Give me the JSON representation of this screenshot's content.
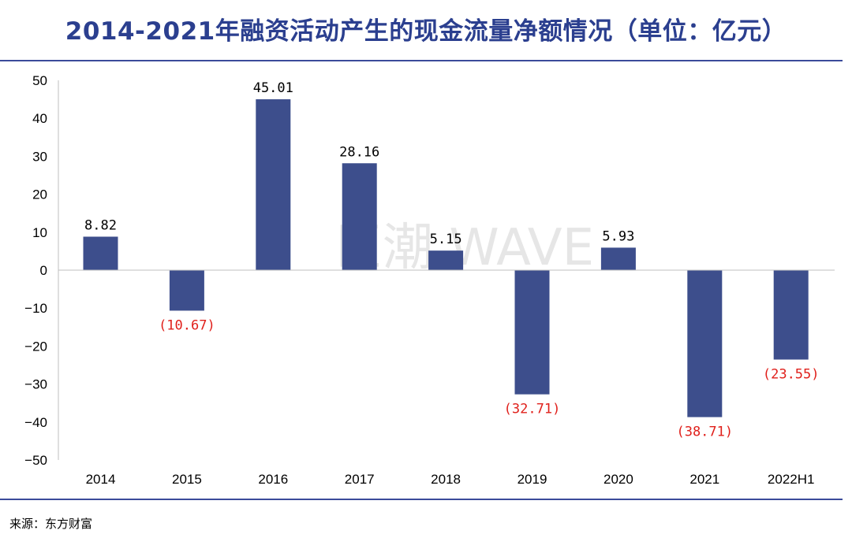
{
  "chart_data": {
    "type": "bar",
    "title": "2014-2021年融资活动产生的现金流量净额情况（单位：亿元）",
    "categories": [
      "2014",
      "2015",
      "2016",
      "2017",
      "2018",
      "2019",
      "2020",
      "2021",
      "2022H1"
    ],
    "values": [
      8.82,
      -10.67,
      45.01,
      28.16,
      5.15,
      -32.71,
      5.93,
      -38.71,
      -23.55
    ],
    "value_labels": [
      "8.82",
      "(10.67)",
      "45.01",
      "28.16",
      "5.15",
      "(32.71)",
      "5.93",
      "(38.71)",
      "(23.55)"
    ],
    "ylim": [
      -50,
      50
    ],
    "yticks": [
      50,
      40,
      30,
      20,
      10,
      0,
      -10,
      -20,
      -30,
      -40,
      -50
    ],
    "ytick_labels": [
      "50",
      "40",
      "30",
      "20",
      "10",
      "0",
      "−10",
      "−20",
      "−30",
      "−40",
      "−50"
    ],
    "xlabel": "",
    "ylabel": "",
    "grid": false,
    "legend": "none"
  },
  "watermark": "巨潮 WAVE",
  "source": "来源：东方财富",
  "colors": {
    "bar": "#3d4e8c",
    "title": "#2b3f8f",
    "negative_label": "#e0201b",
    "positive_label": "#000000",
    "rule": "#3b4b9a",
    "watermark": "#e6e6e6"
  }
}
